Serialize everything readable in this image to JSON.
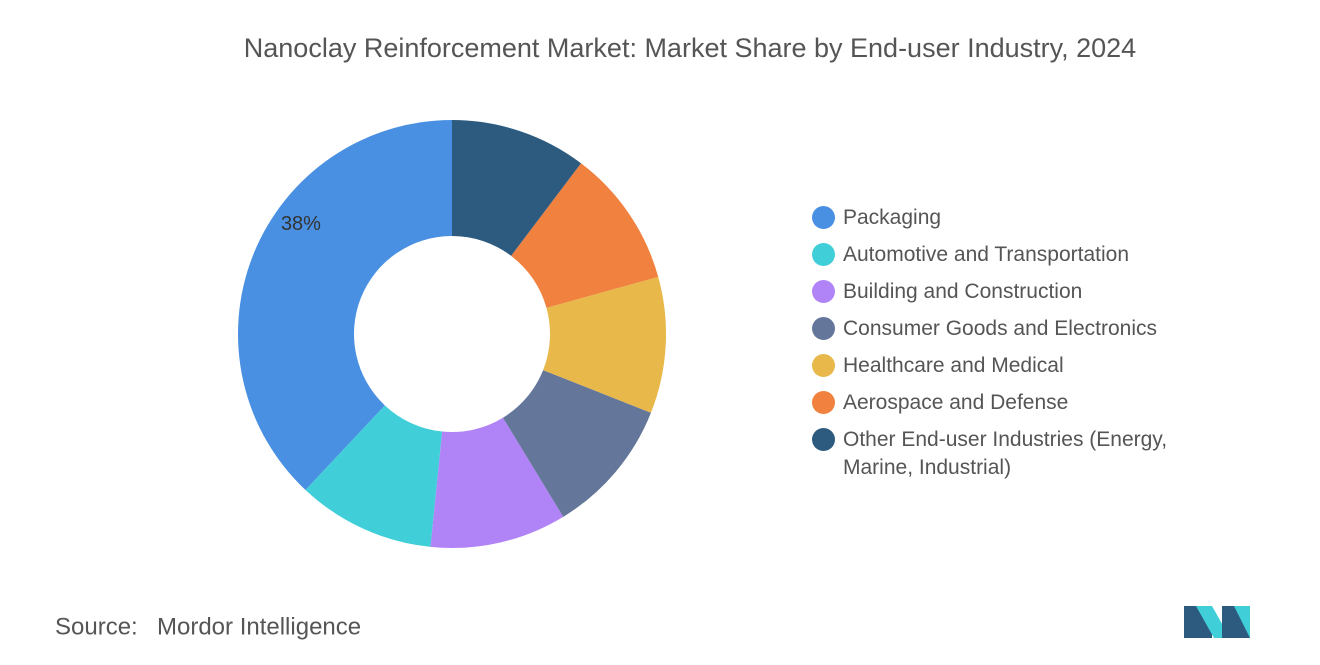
{
  "chart_data": {
    "type": "donut",
    "title": "Nanoclay Reinforcement Market: Market Share by End-user Industry, 2024",
    "categories": [
      "Packaging",
      "Automotive and Transportation",
      "Building and Construction",
      "Consumer Goods and Electronics",
      "Healthcare and Medical",
      "Aerospace and Defense",
      "Other End-user Industries (Energy, Marine, Industrial)"
    ],
    "values": [
      38,
      10.4,
      10.3,
      10.3,
      10.3,
      10.4,
      10.3
    ],
    "value_labels": [
      "38%",
      null,
      null,
      null,
      null,
      null,
      null
    ],
    "colors": [
      "#4a90e2",
      "#40cfd8",
      "#b084f7",
      "#64779a",
      "#e8b84b",
      "#f0813f",
      "#2d5b80"
    ],
    "legend": "right"
  },
  "source": {
    "label": "Source:",
    "name": "Mordor Intelligence"
  }
}
